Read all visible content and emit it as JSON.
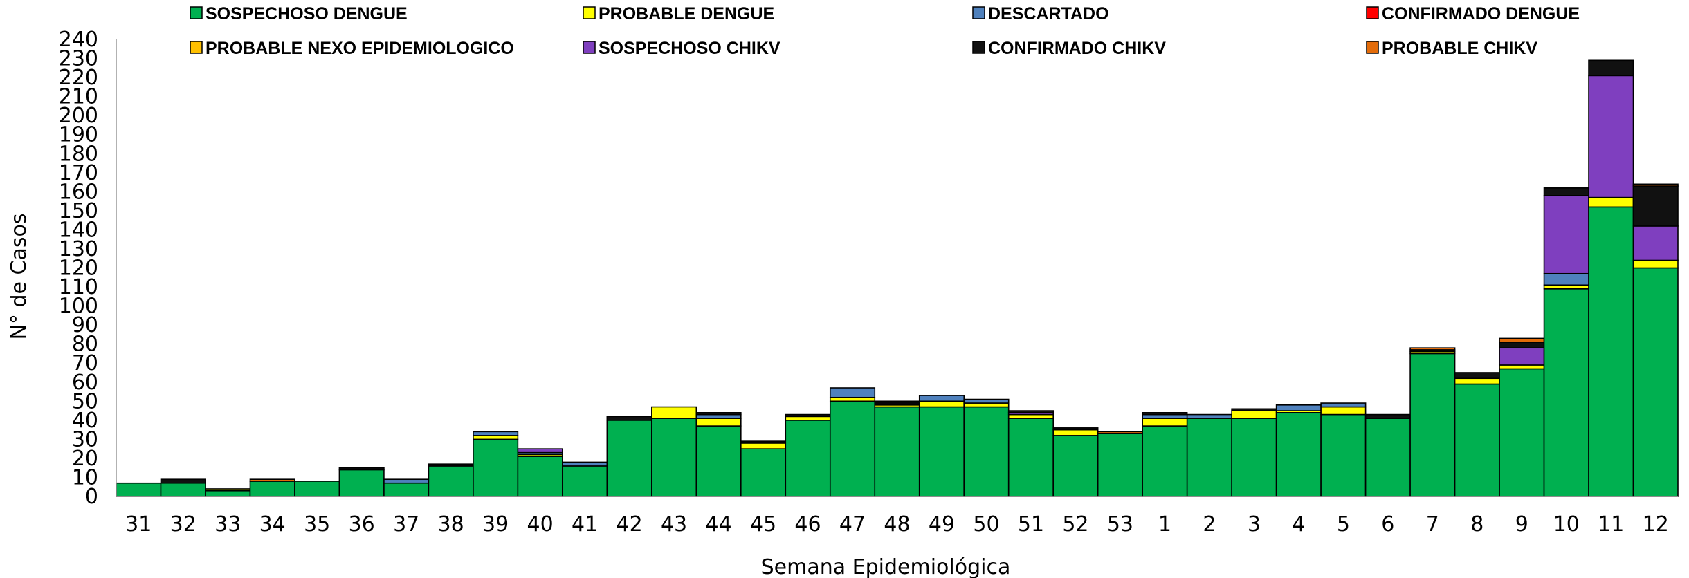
{
  "chart_data": {
    "type": "bar",
    "stacked": true,
    "xlabel": "Semana Epidemiológica",
    "ylabel": "N° de Casos",
    "ylim": [
      0,
      240
    ],
    "ytick_step": 10,
    "grid": false,
    "legend_position": "top",
    "categories": [
      "31",
      "32",
      "33",
      "34",
      "35",
      "36",
      "37",
      "38",
      "39",
      "40",
      "41",
      "42",
      "43",
      "44",
      "45",
      "46",
      "47",
      "48",
      "49",
      "50",
      "51",
      "52",
      "53",
      "1",
      "2",
      "3",
      "4",
      "5",
      "6",
      "7",
      "8",
      "9",
      "10",
      "11",
      "12"
    ],
    "series": [
      {
        "name": "SOSPECHOSO DENGUE",
        "color": "#00b050",
        "values": [
          7,
          7,
          3,
          8,
          8,
          14,
          7,
          16,
          30,
          21,
          16,
          40,
          41,
          37,
          25,
          40,
          50,
          47,
          47,
          47,
          41,
          32,
          33,
          37,
          41,
          41,
          44,
          43,
          41,
          75,
          59,
          67,
          109,
          152,
          120
        ]
      },
      {
        "name": "PROBABLE DENGUE",
        "color": "#ffff00",
        "values": [
          0,
          0,
          1,
          0,
          0,
          0,
          0,
          0,
          2,
          1,
          0,
          0,
          6,
          4,
          3,
          2,
          2,
          1,
          3,
          2,
          2,
          3,
          0,
          4,
          0,
          4,
          1,
          4,
          0,
          1,
          3,
          2,
          2,
          5,
          4
        ]
      },
      {
        "name": "DESCARTADO",
        "color": "#4f81bd",
        "values": [
          0,
          0,
          0,
          0,
          0,
          0,
          2,
          0,
          2,
          1,
          2,
          0,
          0,
          2,
          0,
          0,
          5,
          0,
          3,
          2,
          0,
          0,
          0,
          2,
          2,
          0,
          3,
          2,
          0,
          0,
          0,
          0,
          6,
          0,
          0
        ]
      },
      {
        "name": "CONFIRMADO DENGUE",
        "color": "#ff0000",
        "values": [
          0,
          0,
          0,
          0,
          0,
          0,
          0,
          0,
          0,
          0,
          0,
          0,
          0,
          0,
          0,
          0,
          0,
          0,
          0,
          0,
          0,
          0,
          0,
          0,
          0,
          0,
          0,
          0,
          0,
          0,
          0,
          0,
          0,
          0,
          0
        ]
      },
      {
        "name": "PROBABLE NEXO EPIDEMIOLOGICO",
        "color": "#ffc000",
        "values": [
          0,
          0,
          0,
          0,
          0,
          0,
          0,
          0,
          0,
          0,
          0,
          0,
          0,
          0,
          0,
          0,
          0,
          0,
          0,
          0,
          0,
          0,
          0,
          0,
          0,
          0,
          0,
          0,
          0,
          0,
          0,
          0,
          0,
          0,
          0
        ]
      },
      {
        "name": "SOSPECHOSO CHIKV",
        "color": "#7f3fbf",
        "values": [
          0,
          0,
          0,
          0,
          0,
          0,
          0,
          0,
          0,
          2,
          0,
          0,
          0,
          0,
          0,
          0,
          0,
          1,
          0,
          0,
          1,
          0,
          0,
          0,
          0,
          0,
          0,
          0,
          0,
          0,
          0,
          9,
          41,
          64,
          18
        ]
      },
      {
        "name": "CONFIRMADO CHIKV",
        "color": "#111111",
        "values": [
          0,
          2,
          0,
          0,
          0,
          1,
          0,
          1,
          0,
          0,
          0,
          2,
          0,
          1,
          1,
          1,
          0,
          1,
          0,
          0,
          1,
          1,
          0,
          1,
          0,
          1,
          0,
          0,
          2,
          1,
          3,
          3,
          4,
          8,
          21
        ]
      },
      {
        "name": "PROBABLE CHIKV",
        "color": "#e46c0a",
        "values": [
          0,
          0,
          0,
          1,
          0,
          0,
          0,
          0,
          0,
          0,
          0,
          0,
          0,
          0,
          0,
          0,
          0,
          0,
          0,
          0,
          0,
          0,
          1,
          0,
          0,
          0,
          0,
          0,
          0,
          1,
          0,
          2,
          0,
          0,
          1
        ]
      }
    ]
  }
}
